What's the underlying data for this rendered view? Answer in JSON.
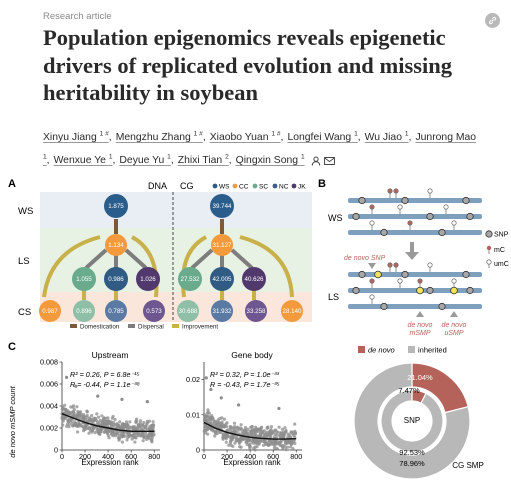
{
  "article": {
    "type": "Research article",
    "title": "Population epigenomics reveals epigenetic drivers of replicated evolution and missing heritability in soybean"
  },
  "authors": [
    {
      "name": "Xinyu Jiang",
      "sup": "1 #"
    },
    {
      "name": "Mengzhu Zhang",
      "sup": "1 #"
    },
    {
      "name": "Xiaobo Yuan",
      "sup": "1 #"
    },
    {
      "name": "Longfei Wang",
      "sup": "1"
    },
    {
      "name": "Wu Jiao",
      "sup": "1"
    },
    {
      "name": "Junrong Mao",
      "sup": "1"
    },
    {
      "name": "Wenxue Ye",
      "sup": "1"
    },
    {
      "name": "Deyue Yu",
      "sup": "1"
    },
    {
      "name": "Zhixi Tian",
      "sup": "2"
    },
    {
      "name": "Qingxin Song",
      "sup": "1"
    }
  ],
  "icons": {
    "link": "link-icon",
    "person": "person-icon",
    "mail": "envelope-icon"
  },
  "figure": {
    "panelA": {
      "label": "A",
      "dna_label": "DNA",
      "cg_label": "CG",
      "row_labels": [
        "WS",
        "LS",
        "CS"
      ],
      "legend": [
        {
          "code": "WS",
          "color": "#2b5d8c"
        },
        {
          "code": "CC",
          "color": "#f39a3c"
        },
        {
          "code": "SC",
          "color": "#6aab8e"
        },
        {
          "code": "NC",
          "color": "#3a5f8a"
        },
        {
          "code": "JK",
          "color": "#51396e"
        }
      ],
      "dna_nodes": {
        "ws": "1.875",
        "ls_mid": "1.134",
        "ls": [
          "1.055",
          "0.986",
          "1.026"
        ],
        "cs": [
          "0.987",
          "0.896",
          "0.785",
          "0.573"
        ]
      },
      "cg_nodes": {
        "ws": "39.744",
        "ls_mid": "31.127",
        "ls": [
          "27.532",
          "42.005",
          "40.626"
        ],
        "cs": [
          "30.688",
          "31.932",
          "33.258",
          "28.140"
        ]
      },
      "key": [
        {
          "label": "Domestication",
          "color": "#7a5a3a"
        },
        {
          "label": "Dispersal",
          "color": "#7d7d7d"
        },
        {
          "label": "Improvement",
          "color": "#c8b04a"
        }
      ]
    },
    "panelB": {
      "label": "B",
      "ws_label": "WS",
      "ls_label": "LS",
      "legend": {
        "snp": "SNP",
        "mc": "mC",
        "umc": "umC"
      },
      "de_novo_snp": "de novo SNP",
      "de_novo_msmp": "de novo\nmSMP",
      "de_novo_usmp": "de novo\nuSMP"
    },
    "panelC": {
      "label": "C",
      "plot1": {
        "title": "Upstream",
        "stat1": "R² = 0.26, P = 6.8e⁻¹⁵",
        "stat2": "R = -0.44, P = 1.1e⁻³⁸"
      },
      "plot2": {
        "title": "Gene body",
        "stat1": "R² = 0.32, P = 1.0e⁻³³",
        "stat2": "R = -0.43, P = 1.7e⁻³⁵"
      },
      "ylabel": "de novo mSMP count",
      "xlabel": "Expression rank"
    },
    "donut": {
      "legend_de_novo": "de novo",
      "legend_inherited": "inherited",
      "inner_label": "SNP",
      "outer_label": "CG SMP",
      "outer_pct_de_novo": "21.04%",
      "outer_pct_inherited": "78.96%",
      "inner_pct_de_novo": "7.47%",
      "inner_pct_inherited": "92.53%",
      "color_de_novo": "#b5635a",
      "color_inherited": "#b8b8b8"
    }
  },
  "chart_data": [
    {
      "type": "scatter",
      "title": "Upstream",
      "xlabel": "Expression rank",
      "ylabel": "de novo mSMP count",
      "xlim": [
        0,
        850
      ],
      "ylim": [
        0,
        0.008
      ],
      "xticks": [
        0,
        200,
        400,
        600,
        800
      ],
      "yticks": [
        0,
        0.002,
        0.004,
        0.006,
        0.008
      ],
      "fit": {
        "x": [
          0,
          100,
          200,
          300,
          400,
          500,
          600,
          700,
          800
        ],
        "y": [
          0.0033,
          0.0029,
          0.0025,
          0.0022,
          0.002,
          0.0018,
          0.0017,
          0.0017,
          0.0017
        ]
      },
      "cloud": {
        "center_y": [
          0.0034,
          0.003,
          0.0026,
          0.0023,
          0.0021,
          0.0019,
          0.0018,
          0.0018,
          0.0018
        ],
        "spread": 0.0009,
        "outliers": [
          [
            40,
            0.0066
          ],
          [
            120,
            0.0058
          ],
          [
            310,
            0.0049
          ],
          [
            520,
            0.0046
          ],
          [
            740,
            0.0044
          ]
        ]
      }
    },
    {
      "type": "scatter",
      "title": "Gene body",
      "xlabel": "Expression rank",
      "ylabel": "",
      "xlim": [
        0,
        850
      ],
      "ylim": [
        0,
        0.025
      ],
      "xticks": [
        0,
        200,
        400,
        600,
        800
      ],
      "yticks": [
        0,
        0.01,
        0.02
      ],
      "fit": {
        "x": [
          0,
          100,
          200,
          300,
          400,
          500,
          600,
          700,
          800
        ],
        "y": [
          0.0078,
          0.0062,
          0.005,
          0.0042,
          0.0036,
          0.0033,
          0.0031,
          0.0031,
          0.0032
        ]
      },
      "cloud": {
        "center_y": [
          0.008,
          0.0064,
          0.0052,
          0.0044,
          0.0038,
          0.0035,
          0.0033,
          0.0033,
          0.0034
        ],
        "spread": 0.003,
        "outliers": [
          [
            20,
            0.0205
          ],
          [
            60,
            0.0172
          ],
          [
            150,
            0.0148
          ],
          [
            300,
            0.0128
          ],
          [
            650,
            0.0118
          ]
        ]
      }
    },
    {
      "type": "pie",
      "series": [
        {
          "name": "CG SMP",
          "values": [
            21.04,
            78.96
          ],
          "categories": [
            "de novo",
            "inherited"
          ]
        },
        {
          "name": "SNP",
          "values": [
            7.47,
            92.53
          ],
          "categories": [
            "de novo",
            "inherited"
          ]
        }
      ]
    }
  ]
}
